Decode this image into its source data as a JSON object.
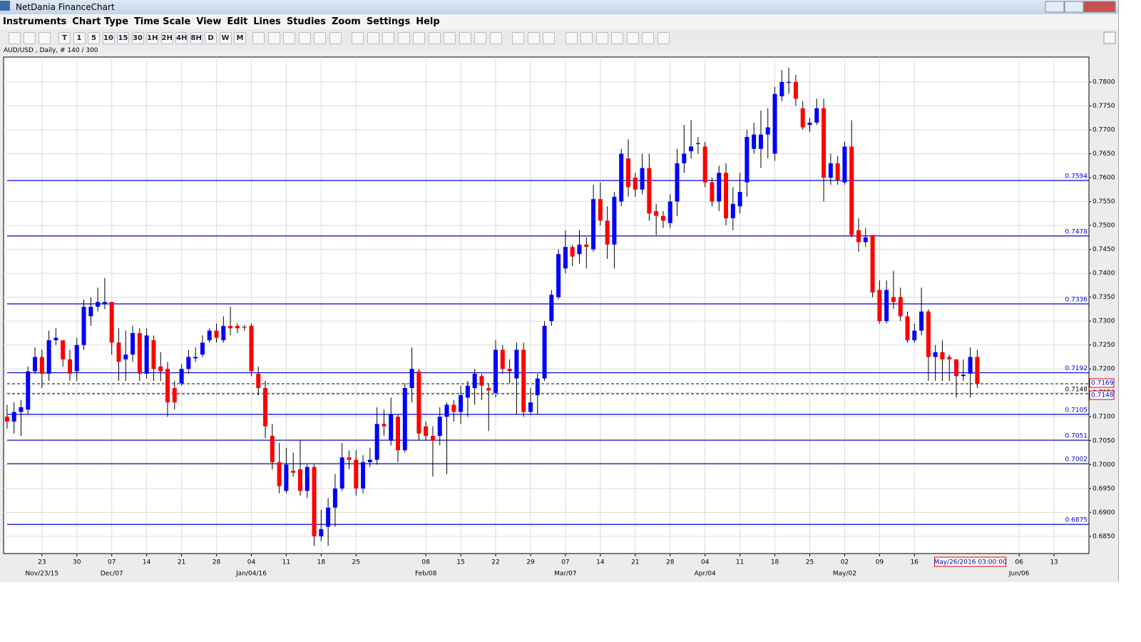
{
  "window": {
    "title": "NetDania FinanceChart"
  },
  "menu": [
    "Instruments",
    "Chart Type",
    "Time Scale",
    "View",
    "Edit",
    "Lines",
    "Studies",
    "Zoom",
    "Settings",
    "Help"
  ],
  "toolbar": [
    "T",
    "1",
    "5",
    "10",
    "15",
    "30",
    "1H",
    "2H",
    "4H",
    "8H",
    "D",
    "W",
    "M"
  ],
  "chart_data": {
    "type": "candlestick",
    "title": "AUD/USD , Daily, # 140 / 300",
    "open": [
      0.71,
      0.709,
      0.711,
      0.7115,
      0.7195,
      0.7225,
      0.719,
      0.726,
      0.726,
      0.722,
      0.7195,
      0.725,
      0.731,
      0.733,
      0.7335,
      0.734,
      0.7255,
      0.722,
      0.723,
      0.7275,
      0.719,
      0.726,
      0.7205,
      0.72,
      0.716,
      0.717,
      0.72,
      0.7222,
      0.723,
      0.726,
      0.728,
      0.726,
      0.729,
      0.729,
      0.7288,
      0.729,
      0.719,
      0.716,
      0.706,
      0.7005,
      0.6945,
      0.6987,
      0.699,
      0.6945,
      0.6995,
      0.685,
      0.687,
      0.691,
      0.695,
      0.7015,
      0.701,
      0.695,
      0.7005,
      0.701,
      0.7085,
      0.705,
      0.71,
      0.703,
      0.716,
      0.7195,
      0.708,
      0.706,
      0.706,
      0.71,
      0.7125,
      0.711,
      0.714,
      0.716,
      0.7185,
      0.716,
      0.715,
      0.724,
      0.72,
      0.718,
      0.724,
      0.711,
      0.7145,
      0.718,
      0.73,
      0.735,
      0.741,
      0.7455,
      0.744,
      0.746,
      0.745,
      0.7555,
      0.751,
      0.746,
      0.755,
      0.764,
      0.76,
      0.7575,
      0.762,
      0.753,
      0.752,
      0.7505,
      0.755,
      0.763,
      0.7655,
      0.767,
      0.7665,
      0.759,
      0.755,
      0.761,
      0.7515,
      0.754,
      0.759,
      0.766,
      0.766,
      0.769,
      0.765,
      0.777,
      0.7798,
      0.78,
      0.7745,
      0.771,
      0.7715,
      0.7745,
      0.76,
      0.763,
      0.759,
      0.7665,
      0.749,
      0.7465,
      0.748,
      0.7365,
      0.73,
      0.735,
      0.735,
      0.731,
      0.726,
      0.728,
      0.732,
      0.7225,
      0.7235,
      0.7225,
      0.722,
      0.7185,
      0.719,
      0.7225
    ],
    "high": [
      0.7125,
      0.713,
      0.7135,
      0.7205,
      0.7245,
      0.724,
      0.728,
      0.7285,
      0.726,
      0.724,
      0.7265,
      0.7345,
      0.735,
      0.737,
      0.739,
      0.734,
      0.7285,
      0.728,
      0.729,
      0.7285,
      0.7285,
      0.727,
      0.7235,
      0.7215,
      0.7175,
      0.721,
      0.724,
      0.7245,
      0.727,
      0.7285,
      0.7295,
      0.731,
      0.733,
      0.7295,
      0.7292,
      0.7295,
      0.7205,
      0.7175,
      0.7085,
      0.7045,
      0.7035,
      0.7025,
      0.705,
      0.7,
      0.7,
      0.6905,
      0.693,
      0.698,
      0.7045,
      0.703,
      0.703,
      0.702,
      0.7035,
      0.712,
      0.7115,
      0.714,
      0.7105,
      0.717,
      0.7245,
      0.72,
      0.709,
      0.708,
      0.712,
      0.713,
      0.7135,
      0.7165,
      0.7175,
      0.72,
      0.719,
      0.717,
      0.726,
      0.725,
      0.722,
      0.7255,
      0.7255,
      0.716,
      0.719,
      0.73,
      0.7365,
      0.745,
      0.749,
      0.746,
      0.749,
      0.7475,
      0.7585,
      0.759,
      0.754,
      0.757,
      0.766,
      0.768,
      0.761,
      0.765,
      0.765,
      0.7545,
      0.753,
      0.7565,
      0.766,
      0.771,
      0.772,
      0.7685,
      0.7675,
      0.76,
      0.7625,
      0.763,
      0.758,
      0.761,
      0.77,
      0.7715,
      0.774,
      0.7745,
      0.779,
      0.7825,
      0.783,
      0.7815,
      0.776,
      0.7725,
      0.7765,
      0.7765,
      0.765,
      0.7645,
      0.7675,
      0.772,
      0.7515,
      0.7495,
      0.748,
      0.7385,
      0.7385,
      0.7405,
      0.737,
      0.732,
      0.7295,
      0.737,
      0.7325,
      0.725,
      0.726,
      0.723,
      0.721,
      0.722,
      0.7245,
      0.724
    ],
    "low": [
      0.7075,
      0.7065,
      0.706,
      0.7105,
      0.719,
      0.716,
      0.7175,
      0.725,
      0.7205,
      0.7175,
      0.7175,
      0.724,
      0.729,
      0.732,
      0.7325,
      0.723,
      0.7175,
      0.7175,
      0.7215,
      0.7175,
      0.718,
      0.7175,
      0.7175,
      0.71,
      0.7115,
      0.7165,
      0.719,
      0.7215,
      0.7225,
      0.7255,
      0.7255,
      0.7255,
      0.727,
      0.7275,
      0.728,
      0.7185,
      0.7145,
      0.7055,
      0.699,
      0.694,
      0.694,
      0.6975,
      0.6935,
      0.693,
      0.683,
      0.684,
      0.683,
      0.687,
      0.6945,
      0.699,
      0.6935,
      0.694,
      0.6995,
      0.7,
      0.706,
      0.704,
      0.7005,
      0.7025,
      0.713,
      0.705,
      0.705,
      0.6975,
      0.704,
      0.698,
      0.709,
      0.7085,
      0.71,
      0.7125,
      0.7135,
      0.707,
      0.714,
      0.719,
      0.717,
      0.7105,
      0.71,
      0.7105,
      0.7105,
      0.7175,
      0.729,
      0.7345,
      0.74,
      0.7415,
      0.742,
      0.741,
      0.7445,
      0.75,
      0.743,
      0.741,
      0.754,
      0.756,
      0.756,
      0.7565,
      0.751,
      0.748,
      0.7495,
      0.7495,
      0.752,
      0.761,
      0.764,
      0.765,
      0.758,
      0.754,
      0.753,
      0.75,
      0.749,
      0.7525,
      0.756,
      0.765,
      0.762,
      0.764,
      0.7635,
      0.776,
      0.7775,
      0.775,
      0.77,
      0.7695,
      0.771,
      0.755,
      0.7585,
      0.7585,
      0.7585,
      0.7475,
      0.7445,
      0.7455,
      0.735,
      0.7295,
      0.7295,
      0.7325,
      0.73,
      0.7255,
      0.7255,
      0.727,
      0.7175,
      0.7175,
      0.7175,
      0.7175,
      0.714,
      0.7175,
      0.714,
      0.716
    ],
    "close": [
      0.709,
      0.711,
      0.712,
      0.7195,
      0.7225,
      0.719,
      0.726,
      0.7265,
      0.722,
      0.719,
      0.725,
      0.733,
      0.733,
      0.734,
      0.734,
      0.7255,
      0.7215,
      0.723,
      0.7275,
      0.719,
      0.727,
      0.72,
      0.7195,
      0.713,
      0.713,
      0.72,
      0.7225,
      0.7225,
      0.7255,
      0.728,
      0.7265,
      0.729,
      0.7285,
      0.7285,
      0.7286,
      0.7195,
      0.716,
      0.708,
      0.7005,
      0.6955,
      0.7,
      0.6983,
      0.6945,
      0.6995,
      0.685,
      0.6865,
      0.691,
      0.695,
      0.7015,
      0.701,
      0.695,
      0.7005,
      0.701,
      0.7085,
      0.708,
      0.7105,
      0.703,
      0.716,
      0.72,
      0.7065,
      0.706,
      0.705,
      0.71,
      0.7125,
      0.711,
      0.7145,
      0.7165,
      0.719,
      0.7165,
      0.7155,
      0.724,
      0.72,
      0.7195,
      0.724,
      0.711,
      0.713,
      0.718,
      0.729,
      0.7355,
      0.744,
      0.7455,
      0.7435,
      0.746,
      0.7455,
      0.7555,
      0.751,
      0.746,
      0.756,
      0.765,
      0.758,
      0.7575,
      0.762,
      0.7525,
      0.752,
      0.751,
      0.755,
      0.763,
      0.765,
      0.7665,
      0.7672,
      0.759,
      0.755,
      0.761,
      0.7515,
      0.7545,
      0.757,
      0.7685,
      0.769,
      0.769,
      0.7705,
      0.7775,
      0.78,
      0.78,
      0.7765,
      0.7705,
      0.7715,
      0.7745,
      0.76,
      0.763,
      0.7595,
      0.7665,
      0.748,
      0.7465,
      0.7475,
      0.736,
      0.73,
      0.7365,
      0.734,
      0.731,
      0.726,
      0.728,
      0.732,
      0.7225,
      0.7235,
      0.722,
      0.722,
      0.7185,
      0.7188,
      0.7225,
      0.7169
    ],
    "up_color": "#0000ff",
    "down_color": "#ff0000",
    "level_color": "#0000cc",
    "xlim": [
      -0.5,
      155
    ],
    "xticks": [
      {
        "value": 5,
        "label": "23"
      },
      {
        "value": 10,
        "label": "30"
      },
      {
        "value": 15,
        "label": "07"
      },
      {
        "value": 20,
        "label": "14"
      },
      {
        "value": 25,
        "label": "21"
      },
      {
        "value": 30,
        "label": "28"
      },
      {
        "value": 35,
        "label": "04"
      },
      {
        "value": 40,
        "label": "11"
      },
      {
        "value": 45,
        "label": "18"
      },
      {
        "value": 50,
        "label": "25"
      },
      {
        "value": 60,
        "label": "08"
      },
      {
        "value": 65,
        "label": "15"
      },
      {
        "value": 70,
        "label": "22"
      },
      {
        "value": 75,
        "label": "29"
      },
      {
        "value": 80,
        "label": "07"
      },
      {
        "value": 85,
        "label": "14"
      },
      {
        "value": 90,
        "label": "21"
      },
      {
        "value": 95,
        "label": "28"
      },
      {
        "value": 100,
        "label": "04"
      },
      {
        "value": 105,
        "label": "11"
      },
      {
        "value": 110,
        "label": "18"
      },
      {
        "value": 115,
        "label": "25"
      },
      {
        "value": 120,
        "label": "02"
      },
      {
        "value": 125,
        "label": "09"
      },
      {
        "value": 130,
        "label": "16"
      },
      {
        "value": 145,
        "label": "06"
      },
      {
        "value": 150,
        "label": "13"
      }
    ],
    "xticks_major": [
      {
        "value": 5,
        "label": "Nov/23/15"
      },
      {
        "value": 15,
        "label": "Dec/07"
      },
      {
        "value": 35,
        "label": "Jan/04/16"
      },
      {
        "value": 60,
        "label": "Feb/08"
      },
      {
        "value": 80,
        "label": "Mar/07"
      },
      {
        "value": 100,
        "label": "Apr/04"
      },
      {
        "value": 120,
        "label": "May/02"
      },
      {
        "value": 145,
        "label": "Jun/06"
      }
    ],
    "ylim": [
      0.6814,
      0.7852
    ],
    "yticks": [
      {
        "value": 0.685,
        "label": "0.6850"
      },
      {
        "value": 0.69,
        "label": "0.6900"
      },
      {
        "value": 0.695,
        "label": "0.6950"
      },
      {
        "value": 0.7,
        "label": "0.7000"
      },
      {
        "value": 0.705,
        "label": "0.7050"
      },
      {
        "value": 0.71,
        "label": "0.7100"
      },
      {
        "value": 0.715,
        "label": "0.7150"
      },
      {
        "value": 0.72,
        "label": "0.7200"
      },
      {
        "value": 0.725,
        "label": "0.7250"
      },
      {
        "value": 0.73,
        "label": "0.7300"
      },
      {
        "value": 0.735,
        "label": "0.7350"
      },
      {
        "value": 0.74,
        "label": "0.7400"
      },
      {
        "value": 0.745,
        "label": "0.7450"
      },
      {
        "value": 0.75,
        "label": "0.7500"
      },
      {
        "value": 0.755,
        "label": "0.7550"
      },
      {
        "value": 0.76,
        "label": "0.7600"
      },
      {
        "value": 0.765,
        "label": "0.7650"
      },
      {
        "value": 0.77,
        "label": "0.7700"
      },
      {
        "value": 0.775,
        "label": "0.7750"
      },
      {
        "value": 0.78,
        "label": "0.7800"
      }
    ],
    "grid": true,
    "levels": [
      0.7594,
      0.7478,
      0.7336,
      0.7192,
      0.7105,
      0.7051,
      0.7002,
      0.6875
    ],
    "dashed_levels": [
      0.7148
    ],
    "last_price": 0.7169,
    "cursor": {
      "value": 138,
      "label": "May/26/2016 03:00:00"
    }
  }
}
